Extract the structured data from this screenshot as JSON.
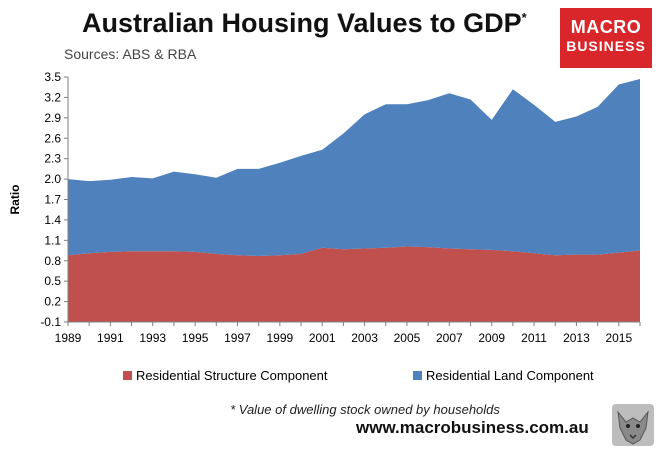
{
  "title": "Australian Housing Values to GDP",
  "title_mark": "*",
  "subtitle": "Sources: ABS & RBA",
  "logo": {
    "line1": "MACRO",
    "line2": "BUSINESS"
  },
  "footnote": "* Value of dwelling stock owned by households",
  "website": "www.macrobusiness.com.au",
  "colors": {
    "structure": "#c0504d",
    "land": "#4f81bd",
    "logo_bg": "#d9262b"
  },
  "chart_data": {
    "type": "area",
    "stacked": true,
    "ylabel": "Ratio",
    "xlabel": "",
    "ylim": [
      -0.1,
      3.5
    ],
    "yticks": [
      "-0.1",
      "0.2",
      "0.5",
      "0.8",
      "1.1",
      "1.4",
      "1.7",
      "2.0",
      "2.3",
      "2.6",
      "2.9",
      "3.2",
      "3.5"
    ],
    "xticks": [
      "1989",
      "1991",
      "1993",
      "1995",
      "1997",
      "1999",
      "2001",
      "2003",
      "2005",
      "2007",
      "2009",
      "2011",
      "2013",
      "2015"
    ],
    "x": [
      1989,
      1990,
      1991,
      1992,
      1993,
      1994,
      1995,
      1996,
      1997,
      1998,
      1999,
      2000,
      2001,
      2002,
      2003,
      2004,
      2005,
      2006,
      2007,
      2008,
      2009,
      2010,
      2011,
      2012,
      2013,
      2014,
      2015,
      2016
    ],
    "series": [
      {
        "name": "Residential Structure Component",
        "color": "#c0504d",
        "values": [
          0.88,
          0.91,
          0.93,
          0.94,
          0.94,
          0.94,
          0.93,
          0.9,
          0.88,
          0.87,
          0.88,
          0.9,
          0.99,
          0.97,
          0.98,
          0.99,
          1.01,
          1.0,
          0.98,
          0.97,
          0.96,
          0.94,
          0.91,
          0.88,
          0.89,
          0.89,
          0.92,
          0.95
        ]
      },
      {
        "name": "Residential Land Component",
        "color": "#4f81bd",
        "values": [
          1.12,
          1.06,
          1.06,
          1.09,
          1.07,
          1.17,
          1.14,
          1.12,
          1.27,
          1.28,
          1.36,
          1.44,
          1.44,
          1.7,
          1.97,
          2.11,
          2.09,
          2.16,
          2.28,
          2.2,
          1.91,
          2.38,
          2.18,
          1.96,
          2.03,
          2.17,
          2.47,
          2.52
        ]
      }
    ],
    "legend": "bottom",
    "grid": false
  }
}
